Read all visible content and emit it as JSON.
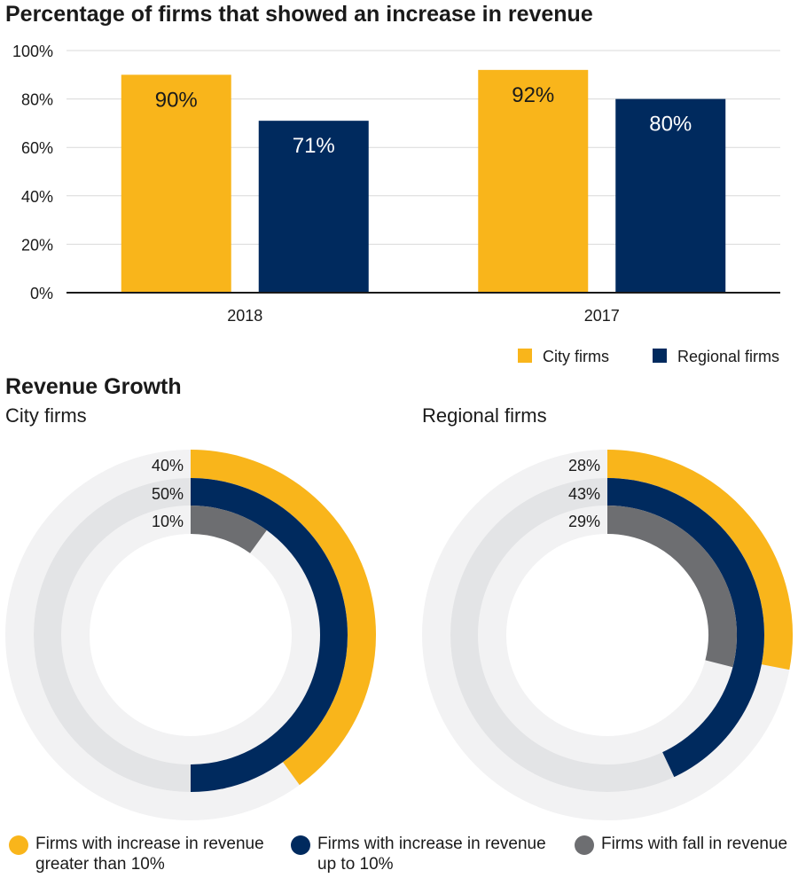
{
  "chart_data": [
    {
      "type": "bar",
      "title": "Percentage of firms that showed an increase in revenue",
      "categories": [
        "2018",
        "2017"
      ],
      "series": [
        {
          "name": "City firms",
          "values": [
            90,
            92
          ],
          "labels": [
            "90%",
            "92%"
          ],
          "color": "#F9B51B"
        },
        {
          "name": "Regional firms",
          "values": [
            71,
            80
          ],
          "labels": [
            "71%",
            "80%"
          ],
          "color": "#002A5E"
        }
      ],
      "ylim": [
        0,
        100
      ],
      "yticks": [
        "0%",
        "20%",
        "40%",
        "60%",
        "80%",
        "100%"
      ],
      "grid": true,
      "legend": "bottom-right"
    },
    {
      "type": "pie",
      "title": "Revenue Growth",
      "subtitle": "City firms",
      "slices": [
        {
          "name": "Firms with increase in revenue greater than 10%",
          "value": 40,
          "label": "40%",
          "color": "#F9B51B"
        },
        {
          "name": "Firms with increase in revenue up to 10%",
          "value": 50,
          "label": "50%",
          "color": "#002A5E"
        },
        {
          "name": "Firms with fall in revenue",
          "value": 10,
          "label": "10%",
          "color": "#6D6E71"
        }
      ]
    },
    {
      "type": "pie",
      "subtitle": "Regional firms",
      "slices": [
        {
          "name": "Firms with increase in revenue greater than 10%",
          "value": 28,
          "label": "28%",
          "color": "#F9B51B"
        },
        {
          "name": "Firms with increase in revenue up to 10%",
          "value": 43,
          "label": "43%",
          "color": "#002A5E"
        },
        {
          "name": "Firms with fall in revenue",
          "value": 29,
          "label": "29%",
          "color": "#6D6E71"
        }
      ]
    }
  ],
  "legend_bottom": [
    {
      "line1": "Firms with increase in revenue",
      "line2": "greater than 10%",
      "color": "#F9B51B"
    },
    {
      "line1": "Firms with increase in revenue",
      "line2": "up to 10%",
      "color": "#002A5E"
    },
    {
      "line1": "Firms with fall in revenue",
      "line2": "",
      "color": "#6D6E71"
    }
  ],
  "colors": {
    "track_outer": "#F2F2F3",
    "track_mid": "#E3E4E6",
    "track_inner": "#F2F2F3",
    "grid": "#D9D9D9",
    "axis": "#1a1a1a"
  }
}
